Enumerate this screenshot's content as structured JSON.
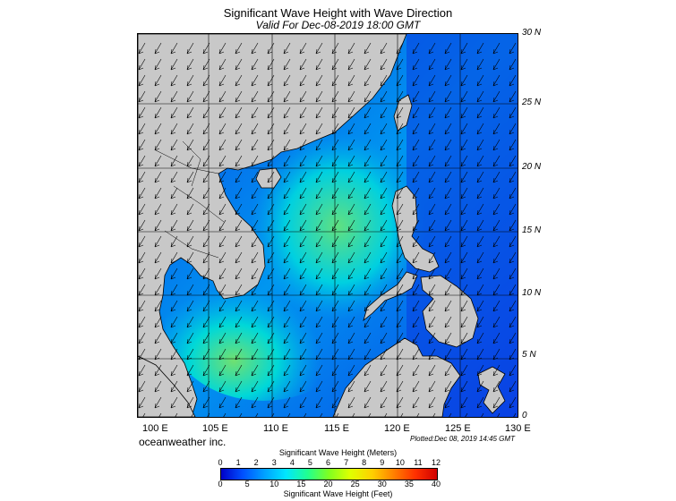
{
  "title": "Significant Wave Height with Wave Direction",
  "subtitle": "Valid For Dec-08-2019 18:00 GMT",
  "brand": "oceanweather inc.",
  "plotted": "Plotted:Dec 08, 2019 14:45 GMT",
  "latitude_labels": [
    "30 N",
    "25 N",
    "20 N",
    "15 N",
    "10 N",
    "5 N",
    "0"
  ],
  "longitude_labels": [
    "100 E",
    "105 E",
    "110 E",
    "115 E",
    "120 E",
    "125 E",
    "130 E"
  ],
  "colorbar": {
    "title_meters": "Significant Wave Height (Meters)",
    "title_feet": "Significant Wave Height (Feet)",
    "meter_ticks": [
      "0",
      "1",
      "2",
      "3",
      "4",
      "5",
      "6",
      "7",
      "8",
      "9",
      "10",
      "11",
      "12"
    ],
    "feet_ticks": [
      "0",
      "5",
      "10",
      "15",
      "20",
      "25",
      "30",
      "35",
      "40"
    ],
    "colors": [
      "#0000c8",
      "#0050ff",
      "#00a0ff",
      "#00e6ff",
      "#20ff90",
      "#80ff20",
      "#e0ff00",
      "#ffd000",
      "#ff8000",
      "#ff3000",
      "#d00000"
    ]
  },
  "colors": {
    "land": "#c8c8c8",
    "low_wave": "#0a3de0",
    "mid_wave": "#00c8f0",
    "high_wave": "#60e070"
  }
}
